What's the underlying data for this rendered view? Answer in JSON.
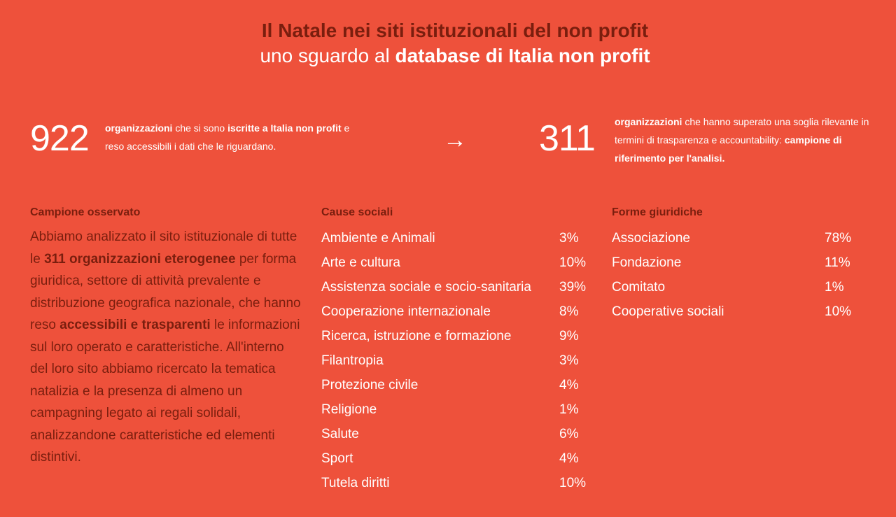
{
  "title": {
    "line1": "Il Natale nei siti istituzionali del non profit",
    "line2_prefix": "uno sguardo al ",
    "line2_bold": "database di Italia non profit"
  },
  "stat_left": {
    "number": "922",
    "bold1": "organizzazioni",
    "text1": " che si sono ",
    "bold2": "iscritte a Italia non profit",
    "text2": " e reso accessibili i dati che le riguardano."
  },
  "arrow": "→",
  "stat_right": {
    "number": "311",
    "bold1": "organizzazioni",
    "text1": " che hanno superato una soglia rilevante in termini di trasparenza e accountability: ",
    "bold2": "campione di riferimento per l'analisi."
  },
  "campione": {
    "heading": "Campione osservato",
    "p1": "Abbiamo analizzato il sito istituzionale di tutte le ",
    "b1": "311 organizzazioni eterogenee",
    "p2": " per forma giuridica, settore di attività prevalente e distribuzione geografica nazionale, che hanno reso ",
    "b2": "accessibili e trasparenti",
    "p3": " le informazioni sul loro operato e caratteristiche. All'interno del loro sito abbiamo ricercato la tematica natalizia e la presenza di almeno un campagning legato ai regali solidali, analizzandone caratteristiche ed elementi distintivi."
  },
  "cause": {
    "heading": "Cause sociali",
    "rows": [
      {
        "label": "Ambiente e Animali",
        "value": "3%"
      },
      {
        "label": "Arte e cultura",
        "value": "10%"
      },
      {
        "label": "Assistenza sociale e socio-sanitaria",
        "value": "39%"
      },
      {
        "label": "Cooperazione internazionale",
        "value": "8%"
      },
      {
        "label": "Ricerca, istruzione e formazione",
        "value": "9%"
      },
      {
        "label": "Filantropia",
        "value": "3%"
      },
      {
        "label": "Protezione civile",
        "value": "4%"
      },
      {
        "label": "Religione",
        "value": "1%"
      },
      {
        "label": "Salute",
        "value": "6%"
      },
      {
        "label": "Sport",
        "value": "4%"
      },
      {
        "label": "Tutela diritti",
        "value": "10%"
      }
    ]
  },
  "forme": {
    "heading": "Forme giuridiche",
    "rows": [
      {
        "label": "Associazione",
        "value": "78%"
      },
      {
        "label": "Fondazione",
        "value": "11%"
      },
      {
        "label": "Comitato",
        "value": "1%"
      },
      {
        "label": "Cooperative sociali",
        "value": "10%"
      }
    ]
  },
  "colors": {
    "background": "#ee513b",
    "dark_text": "#7a1e0e",
    "light_text": "#ffffff"
  }
}
